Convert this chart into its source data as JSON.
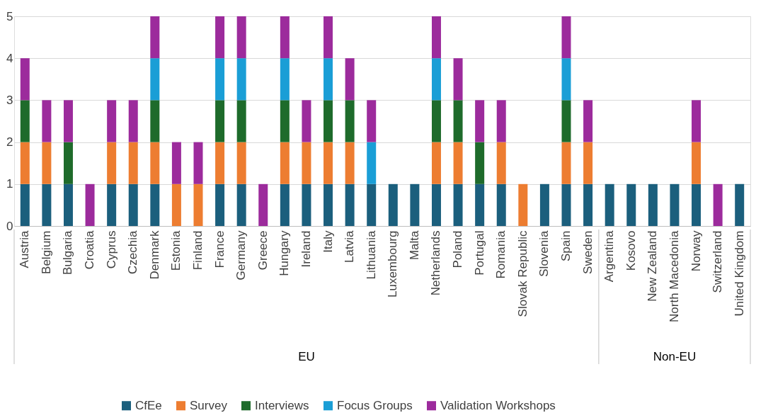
{
  "chart_data": {
    "type": "bar",
    "stacked": true,
    "categories": [
      "Austria",
      "Belgium",
      "Bulgaria",
      "Croatia",
      "Cyprus",
      "Czechia",
      "Denmark",
      "Estonia",
      "Finland",
      "France",
      "Germany",
      "Greece",
      "Hungary",
      "Ireland",
      "Italy",
      "Latvia",
      "Lithuania",
      "Luxembourg",
      "Malta",
      "Netherlands",
      "Poland",
      "Portugal",
      "Romania",
      "Slovak Republic",
      "Slovenia",
      "Spain",
      "Sweden",
      "Argentina",
      "Kosovo",
      "New Zealand",
      "North Macedonia",
      "Norway",
      "Switzerland",
      "United Kingdom"
    ],
    "series": [
      {
        "name": "CfEe",
        "color": "#1b5f7d",
        "values": [
          1,
          1,
          1,
          0,
          1,
          1,
          1,
          0,
          0,
          1,
          1,
          0,
          1,
          1,
          1,
          1,
          1,
          1,
          1,
          1,
          1,
          1,
          1,
          0,
          1,
          1,
          1,
          1,
          1,
          1,
          1,
          1,
          0,
          1
        ]
      },
      {
        "name": "Survey",
        "color": "#ed7d31",
        "values": [
          1,
          1,
          0,
          0,
          1,
          1,
          1,
          1,
          1,
          1,
          1,
          0,
          1,
          1,
          1,
          1,
          0,
          0,
          0,
          1,
          1,
          0,
          1,
          1,
          0,
          1,
          1,
          0,
          0,
          0,
          0,
          1,
          0,
          0
        ]
      },
      {
        "name": "Interviews",
        "color": "#1e6b2b",
        "values": [
          1,
          0,
          1,
          0,
          0,
          0,
          1,
          0,
          0,
          1,
          1,
          0,
          1,
          0,
          1,
          1,
          0,
          0,
          0,
          1,
          1,
          1,
          0,
          0,
          0,
          1,
          0,
          0,
          0,
          0,
          0,
          0,
          0,
          0
        ]
      },
      {
        "name": "Focus Groups",
        "color": "#1a9ed6",
        "values": [
          0,
          0,
          0,
          0,
          0,
          0,
          1,
          0,
          0,
          1,
          1,
          0,
          1,
          0,
          1,
          0,
          1,
          0,
          0,
          1,
          0,
          0,
          0,
          0,
          0,
          1,
          0,
          0,
          0,
          0,
          0,
          0,
          0,
          0
        ]
      },
      {
        "name": "Validation Workshops",
        "color": "#9c2b9c",
        "values": [
          1,
          1,
          1,
          1,
          1,
          1,
          1,
          1,
          1,
          1,
          1,
          1,
          1,
          1,
          1,
          1,
          1,
          0,
          0,
          1,
          1,
          1,
          1,
          0,
          0,
          1,
          1,
          0,
          0,
          0,
          0,
          1,
          1,
          0
        ]
      }
    ],
    "ylim": [
      0,
      5
    ],
    "yticks": [
      0,
      1,
      2,
      3,
      4,
      5
    ],
    "grid": "y",
    "legend": "bottom",
    "annotations": [
      "EU",
      "Non-EU"
    ]
  }
}
